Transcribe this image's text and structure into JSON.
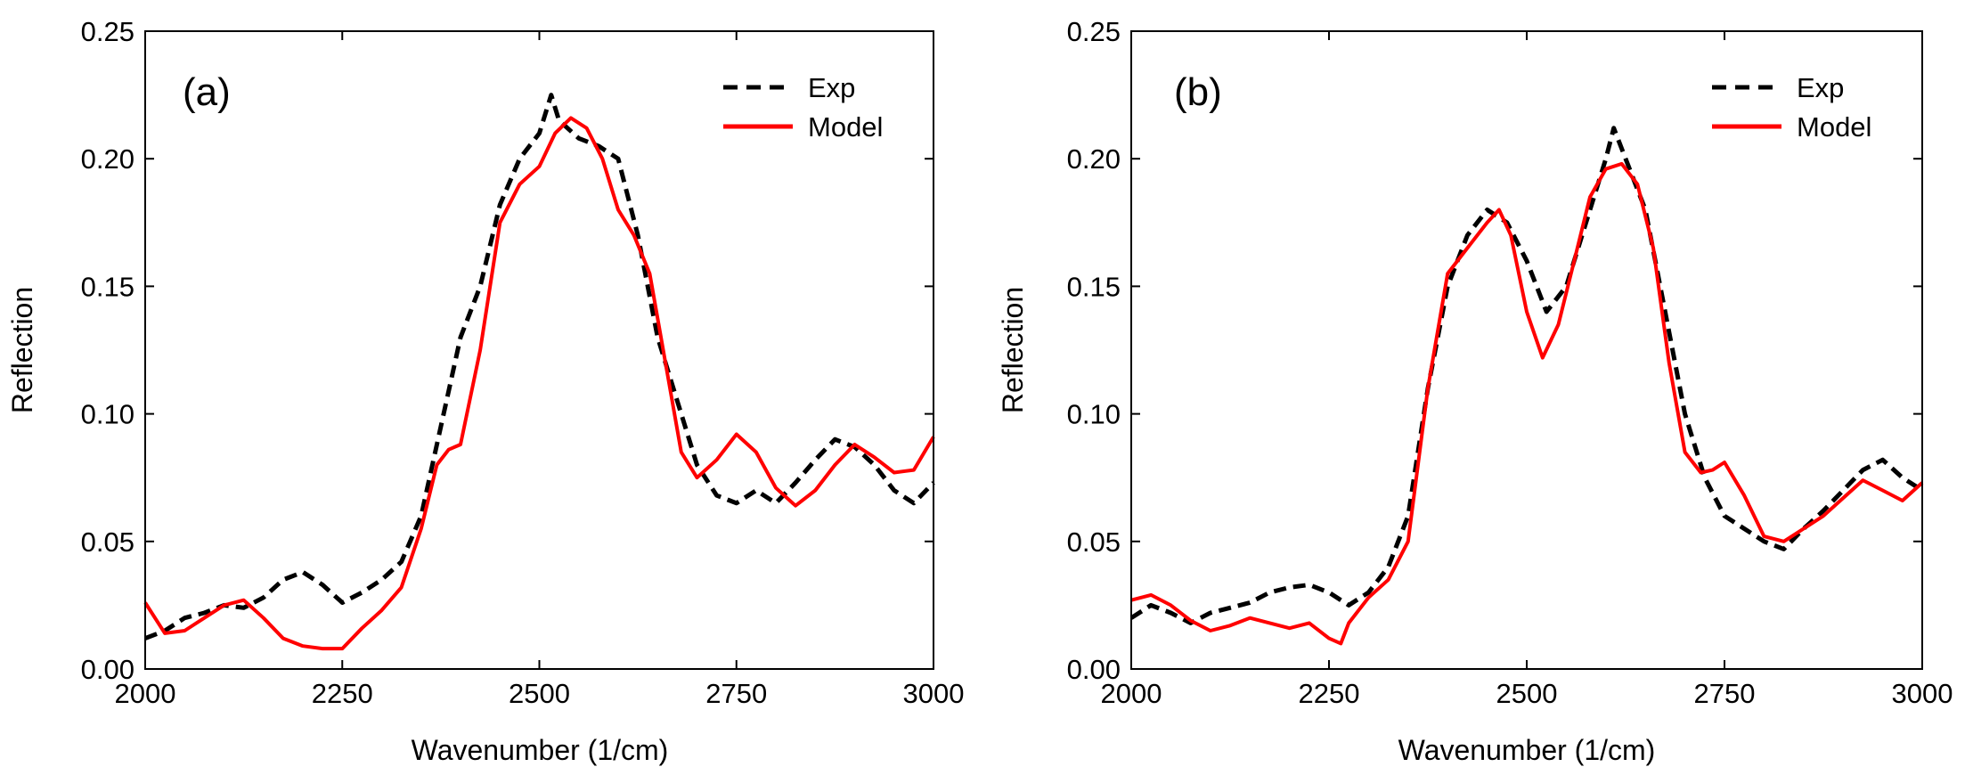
{
  "figure_panels": [
    "(a)",
    "(b)"
  ],
  "chart_data": [
    {
      "type": "line",
      "panel_label": "(a)",
      "xlabel": "Wavenumber (1/cm)",
      "ylabel": "Reflection",
      "xlim": [
        2000,
        3000
      ],
      "ylim": [
        0,
        0.25
      ],
      "xticks": [
        2000,
        2250,
        2500,
        2750,
        3000
      ],
      "xtick_labels": [
        "2000",
        "2250",
        "2500",
        "2750",
        "3000"
      ],
      "yticks": [
        0,
        0.05,
        0.1,
        0.15,
        0.2,
        0.25
      ],
      "ytick_labels": [
        "0.00",
        "0.05",
        "0.10",
        "0.15",
        "0.20",
        "0.25"
      ],
      "legend_position": "top-right",
      "series": [
        {
          "name": "Exp",
          "color": "#000000",
          "style": "dashed",
          "x": [
            2000,
            2025,
            2050,
            2075,
            2100,
            2125,
            2150,
            2175,
            2200,
            2225,
            2250,
            2275,
            2300,
            2325,
            2350,
            2375,
            2400,
            2425,
            2450,
            2475,
            2500,
            2515,
            2525,
            2550,
            2575,
            2600,
            2625,
            2650,
            2675,
            2700,
            2725,
            2750,
            2775,
            2800,
            2825,
            2850,
            2875,
            2900,
            2925,
            2950,
            2975,
            3000
          ],
          "y": [
            0.012,
            0.015,
            0.02,
            0.022,
            0.025,
            0.024,
            0.028,
            0.035,
            0.038,
            0.033,
            0.026,
            0.03,
            0.035,
            0.042,
            0.06,
            0.095,
            0.13,
            0.15,
            0.182,
            0.2,
            0.21,
            0.225,
            0.215,
            0.208,
            0.205,
            0.2,
            0.17,
            0.13,
            0.105,
            0.08,
            0.068,
            0.065,
            0.07,
            0.065,
            0.073,
            0.082,
            0.09,
            0.087,
            0.08,
            0.07,
            0.065,
            0.073
          ]
        },
        {
          "name": "Model",
          "color": "#ff0000",
          "style": "solid",
          "x": [
            2000,
            2025,
            2050,
            2075,
            2100,
            2125,
            2150,
            2175,
            2200,
            2225,
            2250,
            2275,
            2300,
            2325,
            2350,
            2370,
            2385,
            2400,
            2425,
            2450,
            2475,
            2500,
            2520,
            2540,
            2560,
            2580,
            2600,
            2620,
            2640,
            2660,
            2680,
            2700,
            2725,
            2750,
            2775,
            2800,
            2825,
            2850,
            2875,
            2900,
            2925,
            2950,
            2975,
            3000
          ],
          "y": [
            0.026,
            0.014,
            0.015,
            0.02,
            0.025,
            0.027,
            0.02,
            0.012,
            0.009,
            0.008,
            0.008,
            0.016,
            0.023,
            0.032,
            0.055,
            0.08,
            0.086,
            0.088,
            0.125,
            0.175,
            0.19,
            0.197,
            0.21,
            0.216,
            0.212,
            0.2,
            0.18,
            0.17,
            0.155,
            0.12,
            0.085,
            0.075,
            0.082,
            0.092,
            0.085,
            0.071,
            0.064,
            0.07,
            0.08,
            0.088,
            0.083,
            0.077,
            0.078,
            0.091
          ]
        }
      ]
    },
    {
      "type": "line",
      "panel_label": "(b)",
      "xlabel": "Wavenumber (1/cm)",
      "ylabel": "Reflection",
      "xlim": [
        2000,
        3000
      ],
      "ylim": [
        0,
        0.25
      ],
      "xticks": [
        2000,
        2250,
        2500,
        2750,
        3000
      ],
      "xtick_labels": [
        "2000",
        "2250",
        "2500",
        "2750",
        "3000"
      ],
      "yticks": [
        0,
        0.05,
        0.1,
        0.15,
        0.2,
        0.25
      ],
      "ytick_labels": [
        "0.00",
        "0.05",
        "0.10",
        "0.15",
        "0.20",
        "0.25"
      ],
      "legend_position": "top-right",
      "series": [
        {
          "name": "Exp",
          "color": "#000000",
          "style": "dashed",
          "x": [
            2000,
            2025,
            2050,
            2075,
            2100,
            2125,
            2150,
            2175,
            2200,
            2225,
            2250,
            2275,
            2300,
            2325,
            2350,
            2375,
            2400,
            2425,
            2450,
            2475,
            2500,
            2525,
            2550,
            2575,
            2600,
            2610,
            2625,
            2650,
            2675,
            2700,
            2725,
            2750,
            2775,
            2800,
            2825,
            2850,
            2875,
            2900,
            2925,
            2950,
            2975,
            3000
          ],
          "y": [
            0.02,
            0.025,
            0.022,
            0.018,
            0.022,
            0.024,
            0.026,
            0.03,
            0.032,
            0.033,
            0.03,
            0.025,
            0.03,
            0.04,
            0.06,
            0.11,
            0.15,
            0.17,
            0.18,
            0.175,
            0.16,
            0.14,
            0.15,
            0.175,
            0.2,
            0.212,
            0.2,
            0.18,
            0.14,
            0.1,
            0.075,
            0.06,
            0.055,
            0.05,
            0.047,
            0.055,
            0.062,
            0.07,
            0.078,
            0.082,
            0.075,
            0.07
          ]
        },
        {
          "name": "Model",
          "color": "#ff0000",
          "style": "solid",
          "x": [
            2000,
            2025,
            2050,
            2075,
            2100,
            2125,
            2150,
            2175,
            2200,
            2225,
            2250,
            2265,
            2275,
            2300,
            2325,
            2350,
            2375,
            2400,
            2425,
            2450,
            2465,
            2480,
            2500,
            2520,
            2540,
            2560,
            2580,
            2600,
            2620,
            2640,
            2660,
            2680,
            2700,
            2720,
            2735,
            2750,
            2775,
            2800,
            2825,
            2850,
            2875,
            2900,
            2925,
            2950,
            2975,
            3000
          ],
          "y": [
            0.027,
            0.029,
            0.025,
            0.019,
            0.015,
            0.017,
            0.02,
            0.018,
            0.016,
            0.018,
            0.012,
            0.01,
            0.018,
            0.028,
            0.035,
            0.05,
            0.11,
            0.155,
            0.165,
            0.175,
            0.18,
            0.17,
            0.14,
            0.122,
            0.135,
            0.16,
            0.185,
            0.196,
            0.198,
            0.19,
            0.165,
            0.12,
            0.085,
            0.077,
            0.078,
            0.081,
            0.068,
            0.052,
            0.05,
            0.055,
            0.06,
            0.067,
            0.074,
            0.07,
            0.066,
            0.073
          ]
        }
      ]
    }
  ]
}
